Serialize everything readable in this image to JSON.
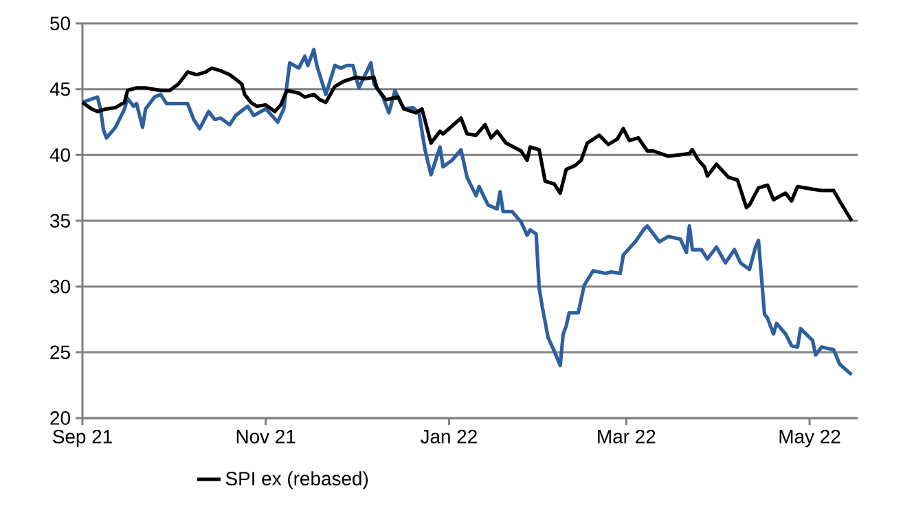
{
  "chart_data": {
    "type": "line",
    "xlim": [
      "2021-09-01",
      "2022-05-17"
    ],
    "xticks": [
      {
        "value": "2021-09-01",
        "label": "Sep 21"
      },
      {
        "value": "2021-11-01",
        "label": "Nov 21"
      },
      {
        "value": "2022-01-01",
        "label": "Jan 22"
      },
      {
        "value": "2022-03-01",
        "label": "Mar 22"
      },
      {
        "value": "2022-05-01",
        "label": "May 22"
      }
    ],
    "ylim": [
      20,
      50
    ],
    "yticks": [
      20,
      25,
      30,
      35,
      40,
      45,
      50
    ],
    "grid": "y",
    "legend": "bottom",
    "marker": "none",
    "line_style": "solid",
    "series": [
      {
        "color": "#2e5f9e",
        "x": [
          "2021-09-01",
          "2021-09-06",
          "2021-09-07",
          "2021-09-08",
          "2021-09-09",
          "2021-09-12",
          "2021-09-15",
          "2021-09-16",
          "2021-09-18",
          "2021-09-19",
          "2021-09-21",
          "2021-09-22",
          "2021-09-25",
          "2021-09-27",
          "2021-09-29",
          "2021-10-06",
          "2021-10-08",
          "2021-10-10",
          "2021-10-13",
          "2021-10-15",
          "2021-10-17",
          "2021-10-20",
          "2021-10-22",
          "2021-10-26",
          "2021-10-28",
          "2021-11-01",
          "2021-11-05",
          "2021-11-07",
          "2021-11-09",
          "2021-11-12",
          "2021-11-14",
          "2021-11-15",
          "2021-11-17",
          "2021-11-18",
          "2021-11-21",
          "2021-11-24",
          "2021-11-26",
          "2021-11-28",
          "2021-11-30",
          "2021-12-02",
          "2021-12-06",
          "2021-12-07",
          "2021-12-10",
          "2021-12-12",
          "2021-12-14",
          "2021-12-17",
          "2021-12-20",
          "2021-12-22",
          "2021-12-24",
          "2021-12-26",
          "2021-12-29",
          "2021-12-30",
          "2022-01-02",
          "2022-01-05",
          "2022-01-07",
          "2022-01-10",
          "2022-01-11",
          "2022-01-14",
          "2022-01-17",
          "2022-01-18",
          "2022-01-19",
          "2022-01-22",
          "2022-01-25",
          "2022-01-27",
          "2022-01-28",
          "2022-01-30",
          "2022-01-31",
          "2022-02-01",
          "2022-02-03",
          "2022-02-05",
          "2022-02-07",
          "2022-02-08",
          "2022-02-09",
          "2022-02-10",
          "2022-02-13",
          "2022-02-15",
          "2022-02-18",
          "2022-02-22",
          "2022-02-24",
          "2022-02-27",
          "2022-02-28",
          "2022-03-04",
          "2022-03-07",
          "2022-03-08",
          "2022-03-12",
          "2022-03-15",
          "2022-03-19",
          "2022-03-21",
          "2022-03-22",
          "2022-03-23",
          "2022-03-26",
          "2022-03-28",
          "2022-03-31",
          "2022-04-03",
          "2022-04-06",
          "2022-04-08",
          "2022-04-11",
          "2022-04-13",
          "2022-04-14",
          "2022-04-16",
          "2022-04-17",
          "2022-04-19",
          "2022-04-20",
          "2022-04-23",
          "2022-04-25",
          "2022-04-27",
          "2022-04-28",
          "2022-05-02",
          "2022-05-03",
          "2022-05-05",
          "2022-05-09",
          "2022-05-11",
          "2022-05-15"
        ],
        "values": [
          44.0,
          44.4,
          43.5,
          41.9,
          41.3,
          42.1,
          43.5,
          44.3,
          43.7,
          43.9,
          42.1,
          43.5,
          44.4,
          44.6,
          43.9,
          43.9,
          42.7,
          42.0,
          43.3,
          42.7,
          42.8,
          42.3,
          43.0,
          43.7,
          43.0,
          43.5,
          42.5,
          43.5,
          47.0,
          46.6,
          47.5,
          46.8,
          48.0,
          46.8,
          44.6,
          46.8,
          46.6,
          46.8,
          46.8,
          45.1,
          47.0,
          45.4,
          44.4,
          43.2,
          44.9,
          43.5,
          43.6,
          43.2,
          40.4,
          38.5,
          40.6,
          39.1,
          39.6,
          40.4,
          38.3,
          36.9,
          37.6,
          36.2,
          35.9,
          37.2,
          35.7,
          35.7,
          34.9,
          33.9,
          34.3,
          34.0,
          29.9,
          28.5,
          26.1,
          25.1,
          24.0,
          26.4,
          27.0,
          28.0,
          28.0,
          30.1,
          31.2,
          31.0,
          31.1,
          31.0,
          32.4,
          33.4,
          34.4,
          34.6,
          33.4,
          33.8,
          33.6,
          32.6,
          34.6,
          32.8,
          32.8,
          32.1,
          33.0,
          31.8,
          32.8,
          31.8,
          31.3,
          33.0,
          33.5,
          27.9,
          27.6,
          26.4,
          27.2,
          26.4,
          25.5,
          25.4,
          26.8,
          25.9,
          24.8,
          25.4,
          25.2,
          24.1,
          23.3
        ]
      },
      {
        "name": "SPI ex (rebased)",
        "color": "#000000",
        "x": [
          "2021-09-01",
          "2021-09-04",
          "2021-09-06",
          "2021-09-09",
          "2021-09-12",
          "2021-09-15",
          "2021-09-16",
          "2021-09-19",
          "2021-09-22",
          "2021-09-27",
          "2021-09-30",
          "2021-10-03",
          "2021-10-06",
          "2021-10-09",
          "2021-10-12",
          "2021-10-14",
          "2021-10-17",
          "2021-10-20",
          "2021-10-24",
          "2021-10-25",
          "2021-10-27",
          "2021-10-29",
          "2021-11-01",
          "2021-11-04",
          "2021-11-06",
          "2021-11-08",
          "2021-11-12",
          "2021-11-14",
          "2021-11-17",
          "2021-11-19",
          "2021-11-21",
          "2021-11-24",
          "2021-11-27",
          "2021-12-01",
          "2021-12-04",
          "2021-12-07",
          "2021-12-08",
          "2021-12-11",
          "2021-12-15",
          "2021-12-17",
          "2021-12-21",
          "2021-12-23",
          "2021-12-26",
          "2021-12-29",
          "2021-12-30",
          "2022-01-05",
          "2022-01-07",
          "2022-01-10",
          "2022-01-13",
          "2022-01-15",
          "2022-01-17",
          "2022-01-20",
          "2022-01-25",
          "2022-01-27",
          "2022-01-28",
          "2022-01-31",
          "2022-02-02",
          "2022-02-05",
          "2022-02-07",
          "2022-02-09",
          "2022-02-12",
          "2022-02-14",
          "2022-02-16",
          "2022-02-20",
          "2022-02-23",
          "2022-02-26",
          "2022-02-28",
          "2022-03-02",
          "2022-03-05",
          "2022-03-08",
          "2022-03-10",
          "2022-03-15",
          "2022-03-22",
          "2022-03-23",
          "2022-03-25",
          "2022-03-27",
          "2022-03-28",
          "2022-03-31",
          "2022-04-04",
          "2022-04-07",
          "2022-04-10",
          "2022-04-11",
          "2022-04-14",
          "2022-04-17",
          "2022-04-19",
          "2022-04-23",
          "2022-04-25",
          "2022-04-27",
          "2022-05-02",
          "2022-05-05",
          "2022-05-09",
          "2022-05-11",
          "2022-05-15"
        ],
        "values": [
          44.0,
          43.5,
          43.3,
          43.5,
          43.6,
          44.0,
          44.9,
          45.1,
          45.1,
          44.9,
          44.9,
          45.4,
          46.3,
          46.1,
          46.3,
          46.6,
          46.4,
          46.1,
          45.4,
          44.6,
          44.0,
          43.7,
          43.8,
          43.3,
          43.8,
          44.9,
          44.7,
          44.4,
          44.6,
          44.2,
          44.0,
          45.2,
          45.6,
          45.9,
          45.8,
          45.9,
          45.1,
          44.2,
          44.4,
          43.5,
          43.2,
          43.5,
          40.9,
          41.8,
          41.6,
          42.8,
          41.6,
          41.5,
          42.3,
          41.3,
          41.8,
          40.9,
          40.3,
          39.6,
          40.6,
          40.4,
          38.0,
          37.8,
          37.1,
          38.9,
          39.2,
          39.6,
          40.9,
          41.5,
          40.8,
          41.2,
          42.0,
          41.1,
          41.3,
          40.3,
          40.3,
          39.9,
          40.1,
          40.4,
          39.6,
          39.1,
          38.4,
          39.3,
          38.3,
          38.1,
          36.0,
          36.2,
          37.5,
          37.7,
          36.6,
          37.1,
          36.5,
          37.6,
          37.4,
          37.3,
          37.3,
          36.5,
          35.0
        ]
      }
    ]
  }
}
